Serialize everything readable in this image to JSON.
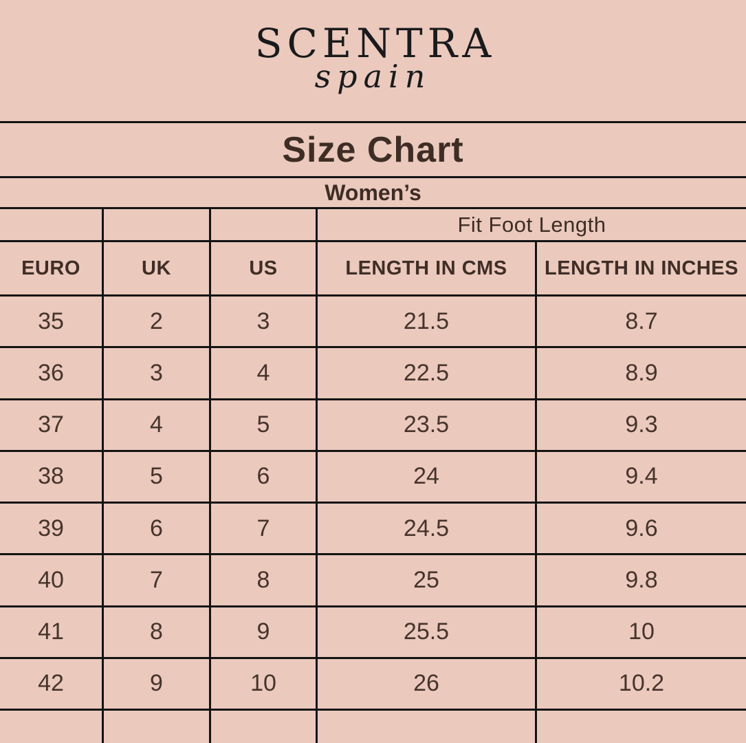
{
  "brand": {
    "name": "SCENTRA",
    "sub": "spain"
  },
  "title": "Size Chart",
  "subtitle": "Women’s",
  "size_table": {
    "group_header": "Fit Foot Length",
    "columns": [
      "EURO",
      "UK",
      "US",
      "LENGTH IN CMS",
      "LENGTH IN INCHES"
    ],
    "rows": [
      [
        "35",
        "2",
        "3",
        "21.5",
        "8.7"
      ],
      [
        "36",
        "3",
        "4",
        "22.5",
        "8.9"
      ],
      [
        "37",
        "4",
        "5",
        "23.5",
        "9.3"
      ],
      [
        "38",
        "5",
        "6",
        "24",
        "9.4"
      ],
      [
        "39",
        "6",
        "7",
        "24.5",
        "9.6"
      ],
      [
        "40",
        "7",
        "8",
        "25",
        "9.8"
      ],
      [
        "41",
        "8",
        "9",
        "25.5",
        "10"
      ],
      [
        "42",
        "9",
        "10",
        "26",
        "10.2"
      ]
    ]
  },
  "colors": {
    "background": "#ebc9bd",
    "grid_line": "#131313",
    "text": "#46342b",
    "logo": "#191a1c"
  }
}
